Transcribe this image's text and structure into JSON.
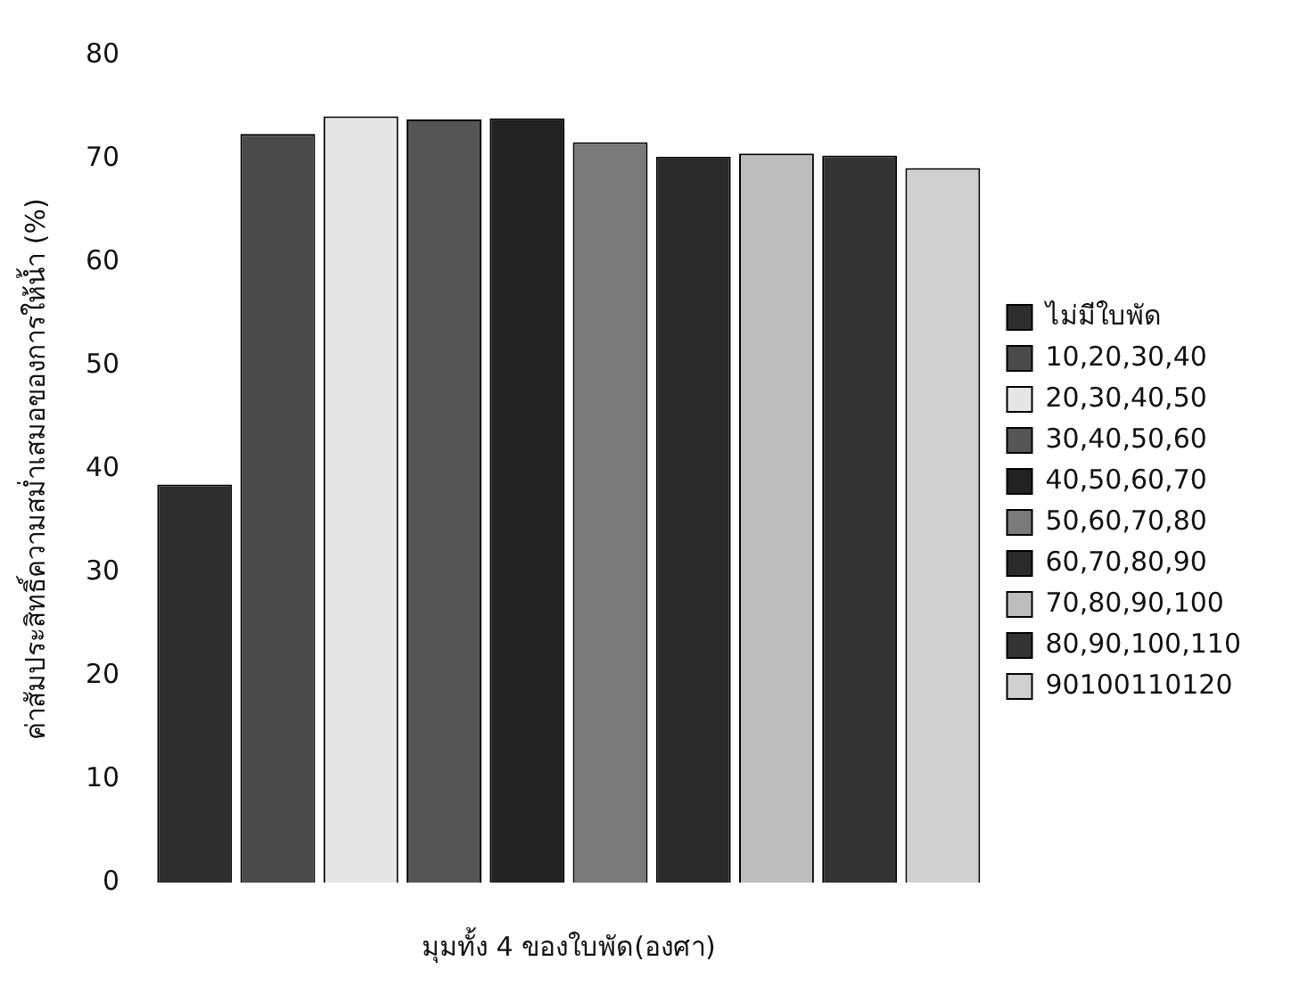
{
  "chart_data": {
    "type": "bar",
    "xlabel": "มุมทั้ง 4 ของใบพัด(องศา)",
    "ylabel": "ค่าสัมประสิทธิ์ความสม่ำเสมอของการให้น้ำ (%)",
    "categories": [
      null
    ],
    "series": [
      {
        "name": "ไม่มีใบพัด",
        "color": "#2e2e2e",
        "values": [
          38.5
        ]
      },
      {
        "name": "10,20,30,40",
        "color": "#4a4a4a",
        "values": [
          72.4
        ]
      },
      {
        "name": "20,30,40,50",
        "color": "#e6e6e6",
        "values": [
          74.1
        ]
      },
      {
        "name": "30,40,50,60",
        "color": "#555555",
        "values": [
          73.8
        ]
      },
      {
        "name": "40,50,60,70",
        "color": "#222222",
        "values": [
          73.9
        ]
      },
      {
        "name": "50,60,70,80",
        "color": "#7a7a7a",
        "values": [
          71.6
        ]
      },
      {
        "name": "60,70,80,90",
        "color": "#2a2a2a",
        "values": [
          70.2
        ]
      },
      {
        "name": "70,80,90,100",
        "color": "#bdbdbd",
        "values": [
          70.5
        ]
      },
      {
        "name": "80,90,100,110",
        "color": "#333333",
        "values": [
          70.3
        ]
      },
      {
        "name": "90100110120",
        "color": "#d0d0d0",
        "values": [
          69.1
        ]
      }
    ],
    "ylim": [
      0,
      80
    ],
    "yticks": [
      0,
      10,
      20,
      30,
      40,
      50,
      60,
      70,
      80
    ],
    "grid": false,
    "legend": "right"
  }
}
